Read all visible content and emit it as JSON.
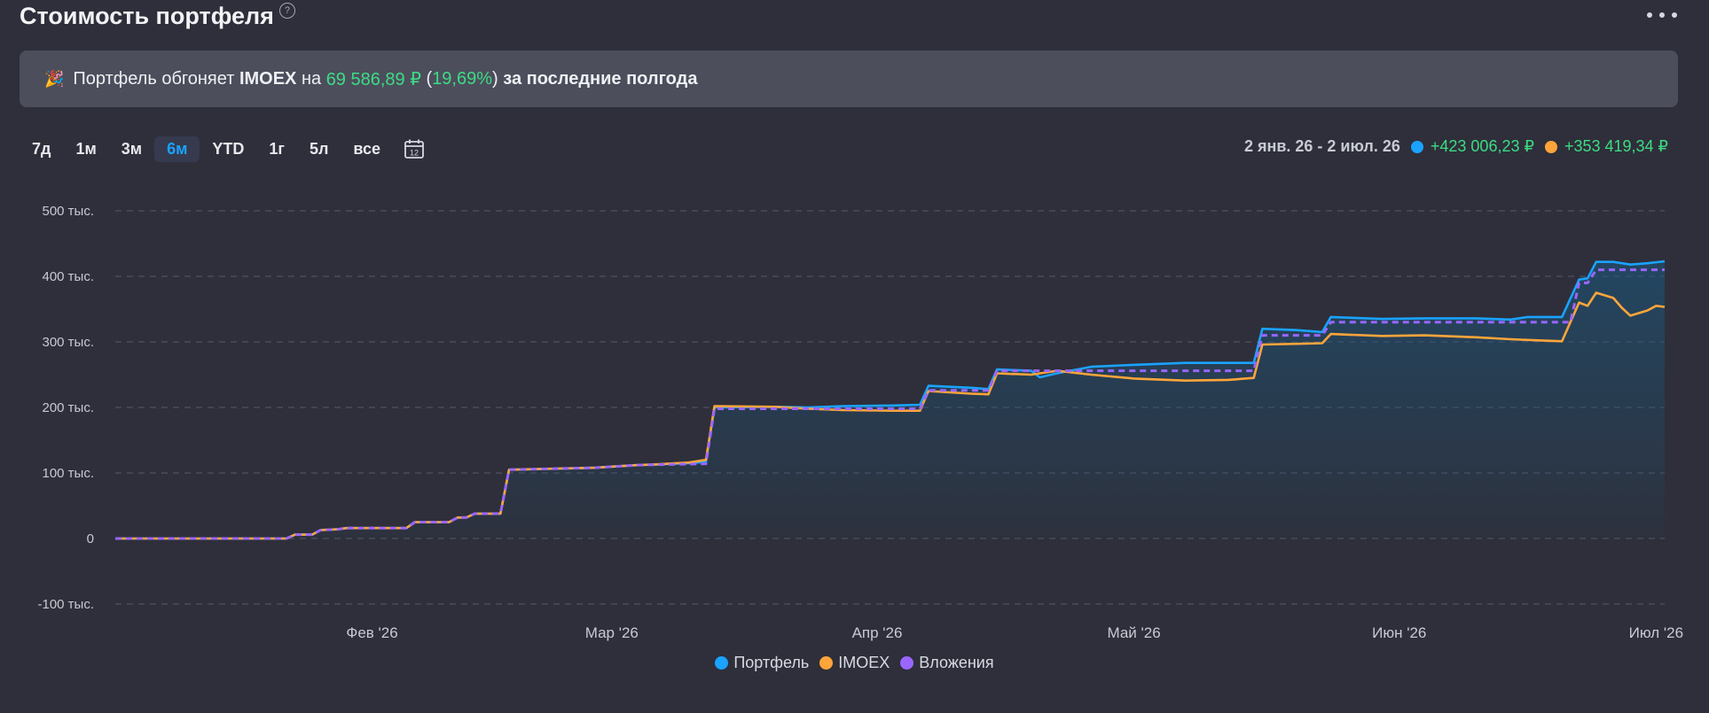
{
  "header": {
    "title": "Стоимость портфеля",
    "help_icon": "?",
    "more_icon": "more-horizontal-icon"
  },
  "banner": {
    "emoji": "🎉",
    "text_1": "Портфель обгоняет",
    "index": "IMOEX",
    "text_2": "на",
    "amount": "69 586,89 ₽",
    "paren_open": "(",
    "percent": "19,69%",
    "paren_close": ")",
    "text_3": "за последние полгода"
  },
  "periods": [
    {
      "label": "7д",
      "active": false
    },
    {
      "label": "1м",
      "active": false
    },
    {
      "label": "3м",
      "active": false
    },
    {
      "label": "6м",
      "active": true
    },
    {
      "label": "YTD",
      "active": false
    },
    {
      "label": "1г",
      "active": false
    },
    {
      "label": "5л",
      "active": false
    },
    {
      "label": "все",
      "active": false
    }
  ],
  "calendar_icon_text": "12",
  "summary": {
    "range": "2 янв. 26 - 2 июл. 26",
    "portfolio_value": "+423 006,23 ₽",
    "imoex_value": "+353 419,34 ₽"
  },
  "colors": {
    "portfolio": "#1aa3ff",
    "imoex": "#ffa53a",
    "invested": "#9966ff",
    "gain": "#3ddc84",
    "grid": "#555868",
    "axis_text": "#c8cad3"
  },
  "chart_data": {
    "type": "line",
    "y_ticks": [
      {
        "value": 500000,
        "label": "500 тыс."
      },
      {
        "value": 400000,
        "label": "400 тыс."
      },
      {
        "value": 300000,
        "label": "300 тыс."
      },
      {
        "value": 200000,
        "label": "200 тыс."
      },
      {
        "value": 100000,
        "label": "100 тыс."
      },
      {
        "value": 0,
        "label": "0"
      },
      {
        "value": -100000,
        "label": "-100 тыс."
      }
    ],
    "ylim": [
      -100000,
      500000
    ],
    "x_domain": [
      "2026-01-02",
      "2026-07-02"
    ],
    "x_ticks": [
      {
        "date": "2026-02-01",
        "label": "Фев '26"
      },
      {
        "date": "2026-03-01",
        "label": "Мар '26"
      },
      {
        "date": "2026-04-01",
        "label": "Апр '26"
      },
      {
        "date": "2026-05-01",
        "label": "Май '26"
      },
      {
        "date": "2026-06-01",
        "label": "Июн '26"
      },
      {
        "date": "2026-07-01",
        "label": "Июл '26"
      }
    ],
    "grid": true,
    "legend_position": "bottom",
    "series": [
      {
        "name": "Портфель",
        "points": [
          [
            "2026-01-02",
            0
          ],
          [
            "2026-01-22",
            0
          ],
          [
            "2026-01-23",
            6000
          ],
          [
            "2026-01-25",
            6000
          ],
          [
            "2026-01-26",
            13000
          ],
          [
            "2026-01-28",
            14000
          ],
          [
            "2026-01-29",
            16000
          ],
          [
            "2026-02-05",
            16000
          ],
          [
            "2026-02-06",
            25000
          ],
          [
            "2026-02-10",
            25000
          ],
          [
            "2026-02-11",
            32000
          ],
          [
            "2026-02-12",
            32000
          ],
          [
            "2026-02-13",
            38000
          ],
          [
            "2026-02-16",
            38000
          ],
          [
            "2026-02-17",
            105000
          ],
          [
            "2026-02-27",
            108000
          ],
          [
            "2026-03-04",
            112000
          ],
          [
            "2026-03-06",
            113000
          ],
          [
            "2026-03-10",
            115000
          ],
          [
            "2026-03-12",
            117000
          ],
          [
            "2026-03-13",
            200000
          ],
          [
            "2026-03-20",
            201000
          ],
          [
            "2026-03-24",
            200000
          ],
          [
            "2026-03-28",
            202000
          ],
          [
            "2026-04-03",
            203000
          ],
          [
            "2026-04-06",
            204000
          ],
          [
            "2026-04-07",
            233000
          ],
          [
            "2026-04-12",
            230000
          ],
          [
            "2026-04-14",
            228000
          ],
          [
            "2026-04-15",
            258000
          ],
          [
            "2026-04-19",
            256000
          ],
          [
            "2026-04-20",
            246000
          ],
          [
            "2026-04-22",
            252000
          ],
          [
            "2026-04-26",
            262000
          ],
          [
            "2026-05-01",
            265000
          ],
          [
            "2026-05-07",
            268000
          ],
          [
            "2026-05-12",
            268000
          ],
          [
            "2026-05-15",
            268000
          ],
          [
            "2026-05-16",
            320000
          ],
          [
            "2026-05-20",
            318000
          ],
          [
            "2026-05-23",
            315000
          ],
          [
            "2026-05-24",
            338000
          ],
          [
            "2026-05-30",
            335000
          ],
          [
            "2026-06-04",
            336000
          ],
          [
            "2026-06-10",
            336000
          ],
          [
            "2026-06-14",
            334000
          ],
          [
            "2026-06-16",
            338000
          ],
          [
            "2026-06-20",
            338000
          ],
          [
            "2026-06-22",
            395000
          ],
          [
            "2026-06-23",
            397000
          ],
          [
            "2026-06-24",
            422000
          ],
          [
            "2026-06-26",
            422000
          ],
          [
            "2026-06-28",
            418000
          ],
          [
            "2026-06-30",
            420000
          ],
          [
            "2026-07-02",
            423006
          ]
        ]
      },
      {
        "name": "IMOEX",
        "points": [
          [
            "2026-01-02",
            0
          ],
          [
            "2026-01-22",
            0
          ],
          [
            "2026-01-23",
            6000
          ],
          [
            "2026-01-25",
            6000
          ],
          [
            "2026-01-26",
            13000
          ],
          [
            "2026-01-28",
            14000
          ],
          [
            "2026-01-29",
            16000
          ],
          [
            "2026-02-05",
            16000
          ],
          [
            "2026-02-06",
            25000
          ],
          [
            "2026-02-10",
            25000
          ],
          [
            "2026-02-11",
            32000
          ],
          [
            "2026-02-12",
            32000
          ],
          [
            "2026-02-13",
            38000
          ],
          [
            "2026-02-16",
            38000
          ],
          [
            "2026-02-17",
            105000
          ],
          [
            "2026-02-27",
            108000
          ],
          [
            "2026-03-04",
            112000
          ],
          [
            "2026-03-06",
            113000
          ],
          [
            "2026-03-10",
            116000
          ],
          [
            "2026-03-12",
            120000
          ],
          [
            "2026-03-13",
            202000
          ],
          [
            "2026-03-20",
            201000
          ],
          [
            "2026-03-24",
            198000
          ],
          [
            "2026-03-28",
            196000
          ],
          [
            "2026-04-03",
            195000
          ],
          [
            "2026-04-06",
            195000
          ],
          [
            "2026-04-07",
            225000
          ],
          [
            "2026-04-12",
            221000
          ],
          [
            "2026-04-14",
            220000
          ],
          [
            "2026-04-15",
            252000
          ],
          [
            "2026-04-19",
            250000
          ],
          [
            "2026-04-22",
            256000
          ],
          [
            "2026-04-26",
            250000
          ],
          [
            "2026-05-01",
            244000
          ],
          [
            "2026-05-07",
            241000
          ],
          [
            "2026-05-12",
            242000
          ],
          [
            "2026-05-15",
            245000
          ],
          [
            "2026-05-16",
            296000
          ],
          [
            "2026-05-20",
            297000
          ],
          [
            "2026-05-23",
            298000
          ],
          [
            "2026-05-24",
            312000
          ],
          [
            "2026-05-30",
            309000
          ],
          [
            "2026-06-04",
            310000
          ],
          [
            "2026-06-10",
            307000
          ],
          [
            "2026-06-14",
            304000
          ],
          [
            "2026-06-16",
            303000
          ],
          [
            "2026-06-20",
            301000
          ],
          [
            "2026-06-22",
            360000
          ],
          [
            "2026-06-23",
            355000
          ],
          [
            "2026-06-24",
            375000
          ],
          [
            "2026-06-26",
            367000
          ],
          [
            "2026-06-27",
            352000
          ],
          [
            "2026-06-28",
            340000
          ],
          [
            "2026-06-30",
            348000
          ],
          [
            "2026-07-01",
            355000
          ],
          [
            "2026-07-02",
            353419
          ]
        ]
      },
      {
        "name": "Вложения",
        "points": [
          [
            "2026-01-02",
            0
          ],
          [
            "2026-01-22",
            0
          ],
          [
            "2026-01-23",
            6000
          ],
          [
            "2026-01-25",
            6000
          ],
          [
            "2026-01-26",
            13000
          ],
          [
            "2026-01-28",
            14000
          ],
          [
            "2026-01-29",
            16000
          ],
          [
            "2026-02-05",
            16000
          ],
          [
            "2026-02-06",
            25000
          ],
          [
            "2026-02-10",
            25000
          ],
          [
            "2026-02-11",
            32000
          ],
          [
            "2026-02-12",
            32000
          ],
          [
            "2026-02-13",
            38000
          ],
          [
            "2026-02-16",
            38000
          ],
          [
            "2026-02-17",
            105000
          ],
          [
            "2026-02-27",
            108000
          ],
          [
            "2026-03-04",
            112000
          ],
          [
            "2026-03-12",
            114000
          ],
          [
            "2026-03-13",
            198000
          ],
          [
            "2026-04-06",
            198000
          ],
          [
            "2026-04-07",
            226000
          ],
          [
            "2026-04-14",
            226000
          ],
          [
            "2026-04-15",
            256000
          ],
          [
            "2026-05-15",
            256000
          ],
          [
            "2026-05-16",
            310000
          ],
          [
            "2026-05-23",
            310000
          ],
          [
            "2026-05-24",
            330000
          ],
          [
            "2026-06-21",
            330000
          ],
          [
            "2026-06-22",
            390000
          ],
          [
            "2026-06-23",
            390000
          ],
          [
            "2026-06-24",
            410000
          ],
          [
            "2026-07-02",
            410000
          ]
        ]
      }
    ]
  },
  "legend": [
    {
      "label": "Портфель"
    },
    {
      "label": "IMOEX"
    },
    {
      "label": "Вложения"
    }
  ]
}
